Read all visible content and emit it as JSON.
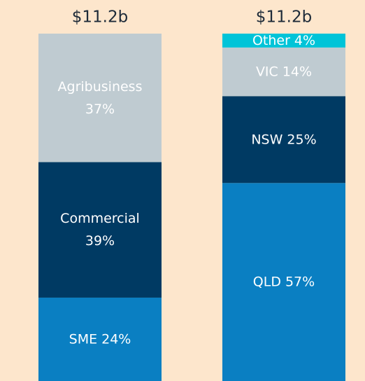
{
  "chart_data": {
    "type": "stacked_bar",
    "ylim": [
      0,
      100
    ],
    "bars": [
      {
        "total": "$11.2b",
        "segments": [
          {
            "name": "SME",
            "value": 24,
            "value_label": "24%",
            "color": "#0a7fc2"
          },
          {
            "name": "Commercial",
            "value": 39,
            "value_label": "39%",
            "color": "#003a63"
          },
          {
            "name": "Agribusiness",
            "value": 37,
            "value_label": "37%",
            "color": "#bfcbd1"
          }
        ]
      },
      {
        "total": "$11.2b",
        "segments": [
          {
            "name": "QLD",
            "value": 57,
            "value_label": "57%",
            "color": "#0a7fc2"
          },
          {
            "name": "NSW",
            "value": 25,
            "value_label": "25%",
            "color": "#003a63"
          },
          {
            "name": "VIC",
            "value": 14,
            "value_label": "14%",
            "color": "#bfcbd1"
          },
          {
            "name": "Other",
            "value": 4,
            "value_label": "4%",
            "color": "#00c4d8"
          }
        ]
      }
    ]
  }
}
